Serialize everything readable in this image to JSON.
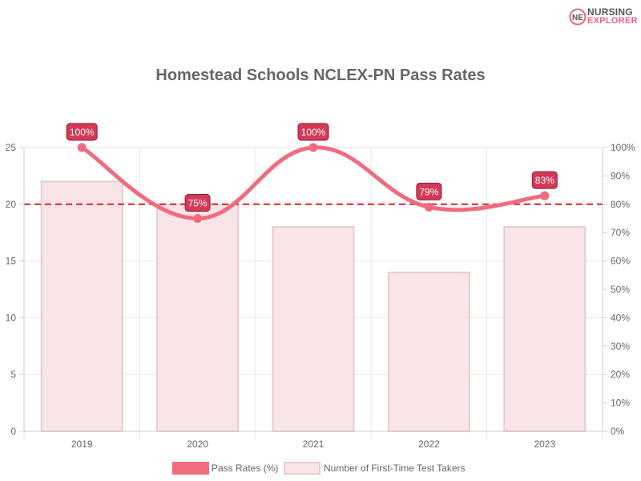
{
  "brand": {
    "line1": "NURSING",
    "line2": "EXPLORER",
    "logo_icon": "nursing-explorer-logo-icon"
  },
  "chart_data": {
    "type": "bar",
    "title": "Homestead Schools NCLEX-PN Pass Rates",
    "categories": [
      "2019",
      "2020",
      "2021",
      "2022",
      "2023"
    ],
    "series": [
      {
        "name": "Pass Rates (%)",
        "type": "line",
        "axis": "right",
        "values": [
          100,
          75,
          100,
          79,
          83
        ],
        "labels": [
          "100%",
          "75%",
          "100%",
          "79%",
          "83%"
        ],
        "color": "#f06b7e"
      },
      {
        "name": "Number of First-Time Test Takers",
        "type": "bar",
        "axis": "left",
        "values": [
          22,
          20,
          18,
          14,
          18
        ],
        "color": "#f9e4e8",
        "border_color": "#e6cdd2"
      }
    ],
    "y_left": {
      "min": 0,
      "max": 25,
      "ticks": [
        "0",
        "5",
        "10",
        "15",
        "20",
        "25"
      ]
    },
    "y_right": {
      "min": 0,
      "max": 100,
      "ticks": [
        "0%",
        "10%",
        "20%",
        "30%",
        "40%",
        "50%",
        "60%",
        "70%",
        "80%",
        "90%",
        "100%"
      ]
    },
    "reference_line": {
      "value": 80,
      "axis": "right",
      "color": "#e0202a",
      "style": "dashed"
    },
    "label_badge_color": "#d33a57",
    "grid": true,
    "legend_position": "bottom"
  }
}
